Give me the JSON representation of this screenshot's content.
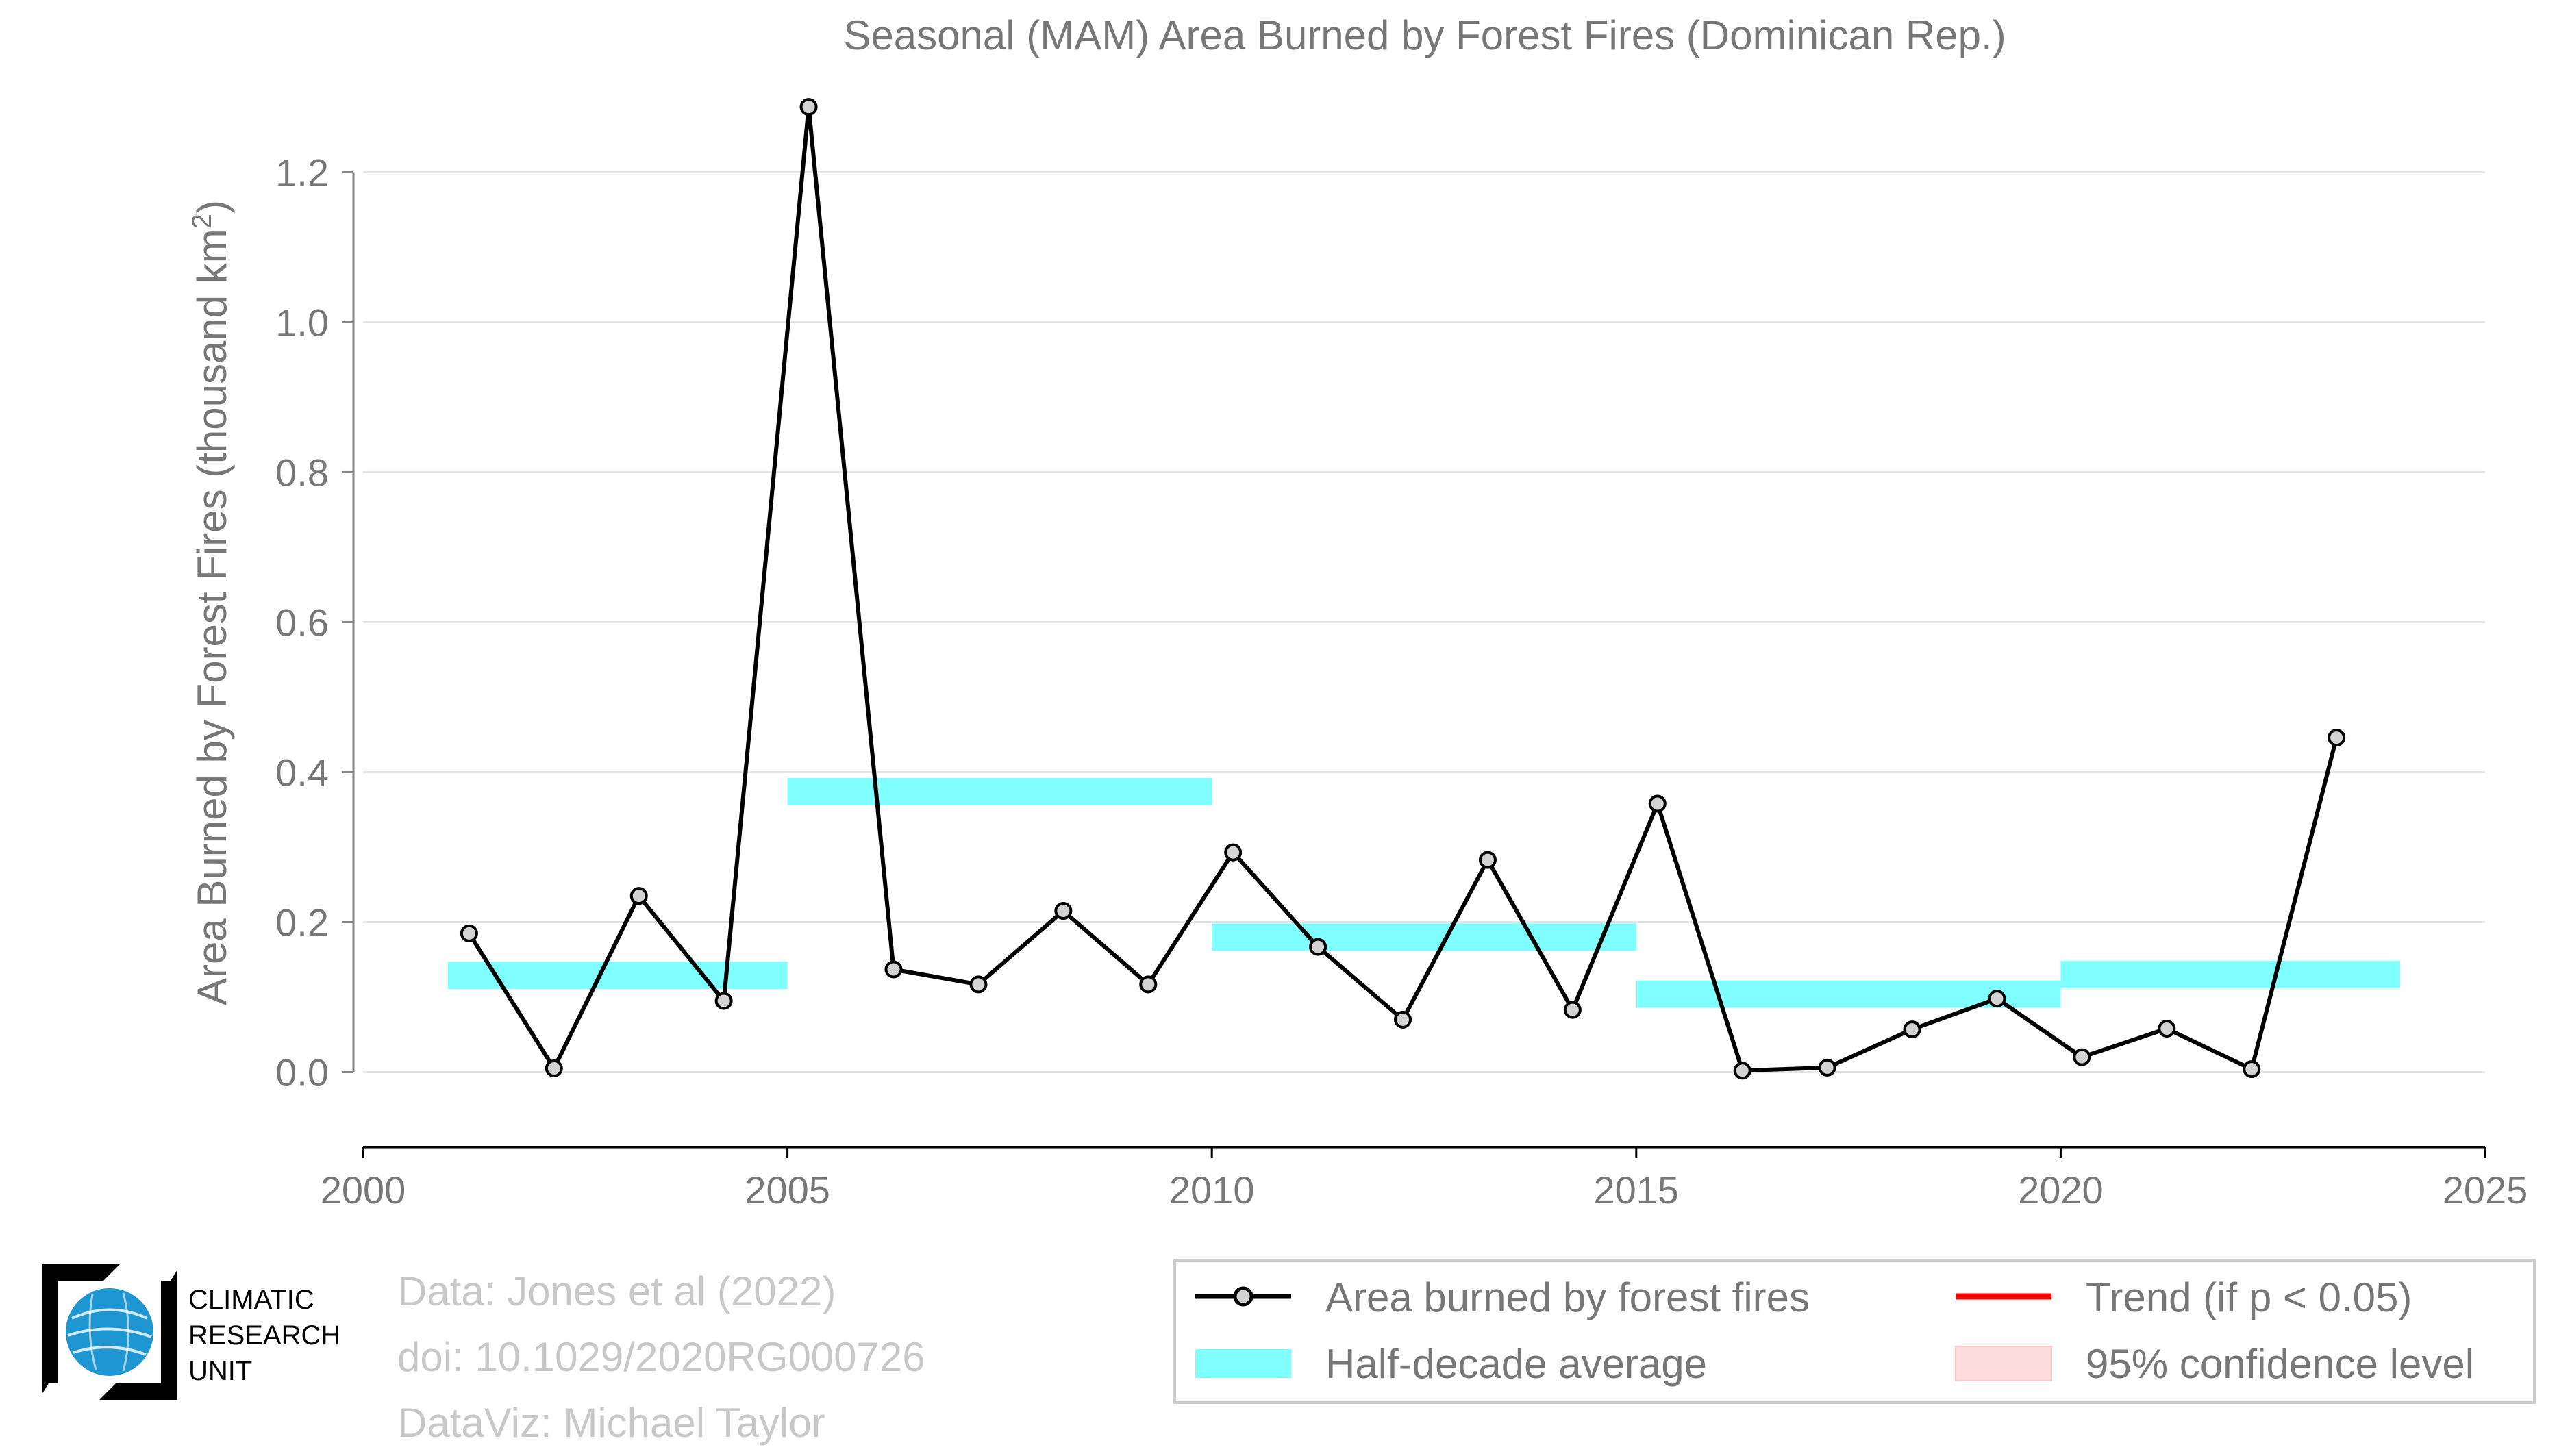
{
  "chart_data": {
    "type": "line",
    "title": "Seasonal (MAM) Area Burned by Forest Fires (Dominican Rep.)",
    "xlabel": "",
    "ylabel_main": "Area Burned by Forest Fires (thousand km",
    "ylabel_sup": "2",
    "ylabel_close": ")",
    "xlim": [
      2000,
      2025
    ],
    "ylim": [
      -0.1,
      1.32
    ],
    "x_ticks": [
      2000,
      2005,
      2010,
      2015,
      2020,
      2025
    ],
    "x_tick_labels": [
      "2000",
      "2005",
      "2010",
      "2015",
      "2020",
      "2025"
    ],
    "y_ticks": [
      0.0,
      0.2,
      0.4,
      0.6,
      0.8,
      1.0,
      1.2
    ],
    "y_tick_labels": [
      "0.0",
      "0.2",
      "0.4",
      "0.6",
      "0.8",
      "1.0",
      "1.2"
    ],
    "grid": true,
    "series": [
      {
        "name": "Area burned by forest fires",
        "color": "#000000",
        "marker_fill": "#d3d3d3",
        "points": [
          {
            "x": 2001.25,
            "y": 0.185
          },
          {
            "x": 2002.25,
            "y": 0.005
          },
          {
            "x": 2003.25,
            "y": 0.235
          },
          {
            "x": 2004.25,
            "y": 0.095
          },
          {
            "x": 2005.25,
            "y": 1.287
          },
          {
            "x": 2006.25,
            "y": 0.137
          },
          {
            "x": 2007.25,
            "y": 0.117
          },
          {
            "x": 2008.25,
            "y": 0.215
          },
          {
            "x": 2009.25,
            "y": 0.117
          },
          {
            "x": 2010.25,
            "y": 0.293
          },
          {
            "x": 2011.25,
            "y": 0.167
          },
          {
            "x": 2012.25,
            "y": 0.07
          },
          {
            "x": 2013.25,
            "y": 0.283
          },
          {
            "x": 2014.25,
            "y": 0.083
          },
          {
            "x": 2015.25,
            "y": 0.358
          },
          {
            "x": 2016.25,
            "y": 0.002
          },
          {
            "x": 2017.25,
            "y": 0.006
          },
          {
            "x": 2018.25,
            "y": 0.057
          },
          {
            "x": 2019.25,
            "y": 0.098
          },
          {
            "x": 2020.25,
            "y": 0.02
          },
          {
            "x": 2021.25,
            "y": 0.058
          },
          {
            "x": 2022.25,
            "y": 0.004
          },
          {
            "x": 2023.25,
            "y": 0.446
          }
        ]
      },
      {
        "name": "Half-decade average",
        "color": "#7fffff",
        "segments": [
          {
            "x0": 2001,
            "x1": 2005,
            "y": 0.129
          },
          {
            "x0": 2005,
            "x1": 2010,
            "y": 0.374
          },
          {
            "x0": 2010,
            "x1": 2015,
            "y": 0.18
          },
          {
            "x0": 2015,
            "x1": 2020,
            "y": 0.104
          },
          {
            "x0": 2020,
            "x1": 2024,
            "y": 0.13
          }
        ]
      }
    ],
    "legend": {
      "placement": "bottom-right",
      "items": [
        {
          "label": "Area burned by forest fires",
          "kind": "line-marker",
          "color": "#000000"
        },
        {
          "label": "Trend (if p < 0.05)",
          "kind": "line",
          "color": "#ff0000"
        },
        {
          "label": "Half-decade average",
          "kind": "band",
          "color": "#7fffff"
        },
        {
          "label": "95% confidence level",
          "kind": "band",
          "color": "#ffdcdc"
        }
      ]
    }
  },
  "credits": {
    "line1": "Data: Jones et al (2022)",
    "line2": "doi: 10.1029/2020RG000726",
    "line3": "DataViz: Michael Taylor"
  },
  "logo": {
    "line1": "CLIMATIC",
    "line2": "RESEARCH",
    "line3": "UNIT",
    "icon": "globe-icon",
    "accent": "#1e96d2"
  }
}
